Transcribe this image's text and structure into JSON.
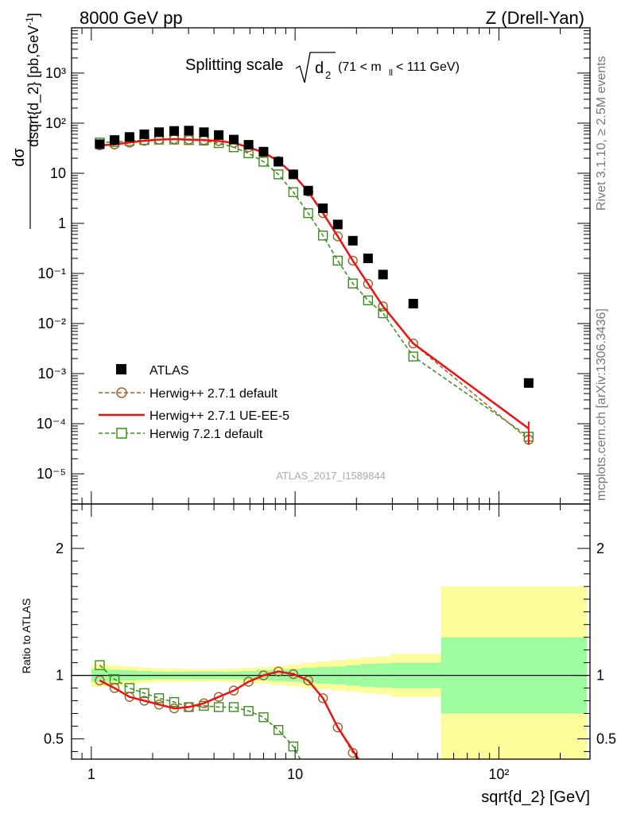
{
  "header": {
    "left": "8000 GeV pp",
    "right": "Z (Drell-Yan)"
  },
  "side_text": {
    "rivet": "Rivet 3.1.10, ≥ 2.5M events",
    "mcplots": "mcplots.cern.ch [arXiv:1306.3436]"
  },
  "watermark": "ATLAS_2017_I1589844",
  "title": {
    "main": "Splitting scale",
    "symbol": "d",
    "sub": "2",
    "cut": "(71 < m",
    "cut_sub": "ll",
    "cut_end": " < 111 GeV)"
  },
  "colors": {
    "atlas": "#000000",
    "herwig_default": "#a0602a",
    "herwig_ue": "#ee1111",
    "herwig7": "#3a8c1a",
    "band_inner": "#9dfc9d",
    "band_outer": "#fdfd9b"
  },
  "chart_data": [
    {
      "type": "scatter",
      "xscale": "log",
      "yscale": "log",
      "xlim": [
        0.8,
        280
      ],
      "ylim": [
        2.5e-06,
        8000
      ],
      "ylabel": "dσ / dsqrt{d_2} [pb,GeV⁻¹]",
      "y_tick_labels": [
        "10⁻⁵",
        "10⁻⁴",
        "10⁻³",
        "10⁻²",
        "10⁻¹",
        "1",
        "10",
        "10²",
        "10³"
      ],
      "legend_position": "bottom-left",
      "x": [
        1.1,
        1.3,
        1.54,
        1.82,
        2.15,
        2.55,
        3.01,
        3.57,
        4.22,
        5.0,
        5.91,
        7.0,
        8.28,
        9.8,
        11.6,
        13.7,
        16.2,
        19.2,
        22.8,
        27.0,
        38.0,
        140.0
      ],
      "series": [
        {
          "name": "ATLAS",
          "style": "markers",
          "values": [
            38,
            46,
            53,
            60,
            66,
            70,
            71,
            66,
            58,
            47,
            37,
            27,
            17,
            9.5,
            4.5,
            2.0,
            0.95,
            0.45,
            0.2,
            0.095,
            0.025,
            0.00065
          ]
        },
        {
          "name": "Herwig++ 2.7.1 default",
          "style": "dashed-circles",
          "values": [
            36,
            37.5,
            41,
            44.5,
            47,
            48,
            47,
            46,
            44,
            40.5,
            33,
            26,
            17.5,
            9.5,
            4.3,
            1.6,
            0.55,
            0.18,
            0.062,
            0.022,
            0.004,
            4.8e-05
          ]
        },
        {
          "name": "Herwig++ 2.7.1 UE-EE-5",
          "style": "solid",
          "values": [
            36,
            37.5,
            41,
            44.5,
            47,
            48,
            47,
            46,
            44,
            40.5,
            33,
            26,
            17.5,
            9.5,
            4.3,
            1.6,
            0.55,
            0.18,
            0.062,
            0.022,
            0.004,
            8e-05
          ]
        },
        {
          "name": "Herwig 7.2.1 default",
          "style": "dashed-squares",
          "values": [
            41,
            42,
            44,
            46,
            47,
            47,
            46,
            45,
            40,
            33,
            25,
            17,
            9.5,
            4.2,
            1.6,
            0.57,
            0.18,
            0.063,
            0.029,
            0.016,
            0.0022,
            5.5e-05
          ]
        }
      ]
    },
    {
      "type": "line",
      "xscale": "log",
      "xlim": [
        0.8,
        280
      ],
      "ylim": [
        0.34,
        2.35
      ],
      "ylabel": "Ratio to ATLAS",
      "xlabel": "sqrt{d_2} [GeV]",
      "x_tick_labels": [
        "1",
        "10",
        "10²"
      ],
      "y_tick_labels": [
        "0.5",
        "1",
        "2"
      ],
      "bands": {
        "edges": [
          1.0,
          1.2,
          1.41,
          1.67,
          1.98,
          2.34,
          2.77,
          3.28,
          3.89,
          4.6,
          5.45,
          6.45,
          7.63,
          9.03,
          10.7,
          12.7,
          15.0,
          17.7,
          21.0,
          24.9,
          29.4,
          52.0,
          270.0
        ],
        "inner": [
          0.05,
          0.045,
          0.04,
          0.035,
          0.03,
          0.03,
          0.03,
          0.03,
          0.03,
          0.03,
          0.035,
          0.04,
          0.045,
          0.05,
          0.06,
          0.065,
          0.07,
          0.08,
          0.09,
          0.095,
          0.1,
          0.3
        ],
        "outer": [
          0.09,
          0.08,
          0.07,
          0.06,
          0.055,
          0.055,
          0.05,
          0.05,
          0.05,
          0.055,
          0.06,
          0.065,
          0.075,
          0.085,
          0.1,
          0.11,
          0.12,
          0.13,
          0.14,
          0.15,
          0.17,
          0.7
        ]
      },
      "series": [
        {
          "name": "Herwig++ 2.7.1 default",
          "x": [
            1.1,
            1.3,
            1.54,
            1.82,
            2.15,
            2.55,
            3.01,
            3.57,
            4.22,
            5.0,
            5.91,
            7.0,
            8.28,
            9.8,
            11.6,
            13.7,
            16.2,
            19.2,
            20.1
          ],
          "values": [
            0.96,
            0.9,
            0.83,
            0.8,
            0.77,
            0.74,
            0.75,
            0.78,
            0.83,
            0.88,
            0.95,
            1.0,
            1.03,
            1.01,
            0.96,
            0.82,
            0.59,
            0.39,
            0.34
          ]
        },
        {
          "name": "Herwig++ 2.7.1 UE-EE-5",
          "x": [
            1.1,
            1.3,
            1.54,
            1.82,
            2.15,
            2.55,
            3.01,
            3.57,
            4.22,
            5.0,
            5.91,
            7.0,
            8.28,
            9.8,
            11.6,
            13.7,
            16.2,
            19.2,
            20.5
          ],
          "values": [
            0.96,
            0.9,
            0.83,
            0.8,
            0.77,
            0.74,
            0.75,
            0.78,
            0.83,
            0.88,
            0.95,
            1.0,
            1.03,
            1.01,
            0.96,
            0.82,
            0.59,
            0.41,
            0.34
          ]
        },
        {
          "name": "Herwig 7.2.1 default",
          "x": [
            1.1,
            1.3,
            1.54,
            1.82,
            2.15,
            2.55,
            3.01,
            3.57,
            4.22,
            5.0,
            5.91,
            7.0,
            8.28,
            9.8,
            10.6
          ],
          "values": [
            1.08,
            0.97,
            0.9,
            0.86,
            0.82,
            0.79,
            0.75,
            0.76,
            0.75,
            0.75,
            0.72,
            0.67,
            0.57,
            0.44,
            0.34
          ]
        }
      ]
    }
  ]
}
